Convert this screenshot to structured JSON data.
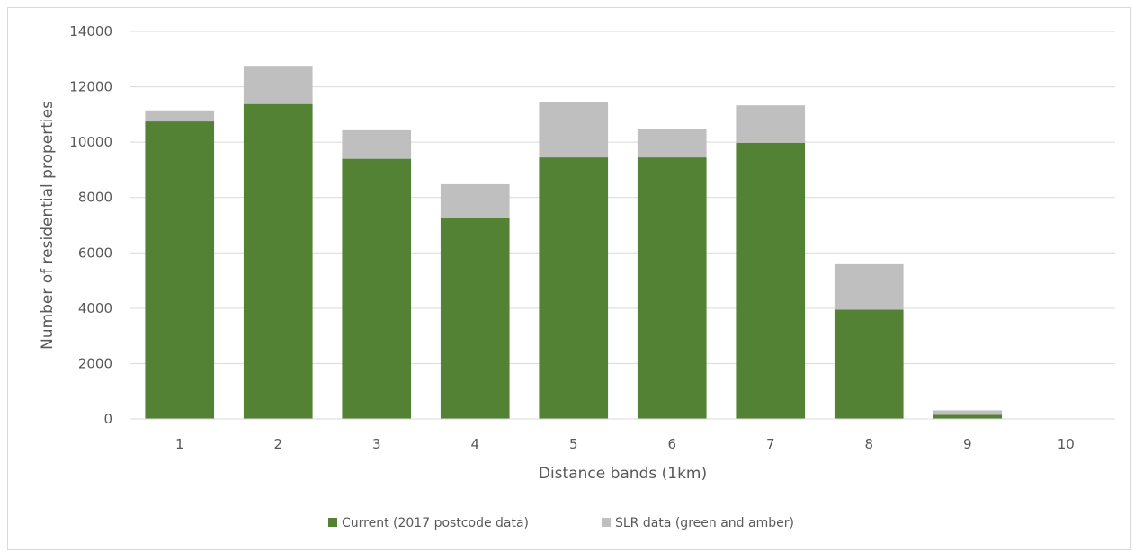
{
  "chart_data": {
    "type": "bar",
    "stacked": true,
    "title": "",
    "xlabel": "Distance bands (1km)",
    "ylabel": "Number of residential properties",
    "categories": [
      "1",
      "2",
      "3",
      "4",
      "5",
      "6",
      "7",
      "8",
      "9",
      "10"
    ],
    "series": [
      {
        "name": "Current (2017 postcode data)",
        "color": "#548235",
        "values": [
          10750,
          11380,
          9400,
          7250,
          9450,
          9450,
          9980,
          3950,
          150,
          0
        ]
      },
      {
        "name": "SLR data (green and amber)",
        "color": "#bfbfbf",
        "values": [
          400,
          1380,
          1030,
          1230,
          2010,
          1010,
          1350,
          1640,
          160,
          0
        ]
      }
    ],
    "ylim": [
      0,
      14000
    ],
    "yticks": [
      "0",
      "2000",
      "4000",
      "6000",
      "8000",
      "10000",
      "12000",
      "14000"
    ],
    "grid": true,
    "legend_position": "bottom"
  }
}
